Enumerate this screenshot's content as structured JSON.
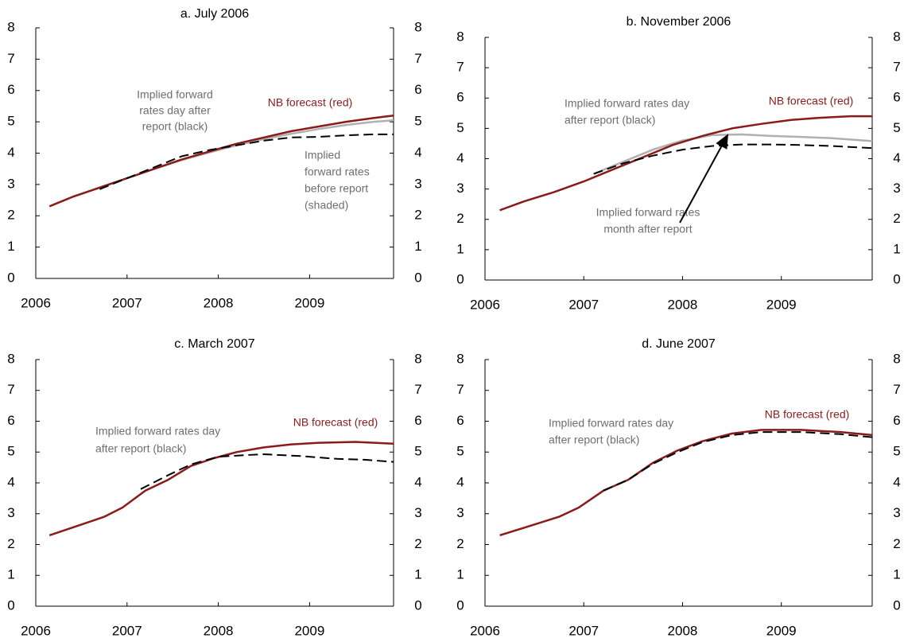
{
  "chart_data": [
    {
      "type": "line",
      "title": "a. July 2006",
      "xlim": [
        2006,
        2009.92
      ],
      "xticks": [
        2006,
        2007,
        2008,
        2009
      ],
      "ylim": [
        0,
        8
      ],
      "yticks": [
        0,
        1,
        2,
        3,
        4,
        5,
        6,
        7,
        8
      ],
      "series": [
        {
          "color": "#b0b0b0",
          "dashed": false,
          "x": [
            2006.15,
            2006.4,
            2006.7,
            2007.0,
            2007.3,
            2007.6,
            2007.9,
            2008.2,
            2008.5,
            2008.8,
            2009.1,
            2009.4,
            2009.7,
            2009.92
          ],
          "values": [
            2.3,
            2.6,
            2.9,
            3.2,
            3.5,
            3.78,
            4.02,
            4.25,
            4.45,
            4.62,
            4.77,
            4.9,
            5.0,
            5.05
          ]
        },
        {
          "color": "#8b1a1a",
          "dashed": false,
          "x": [
            2006.15,
            2006.4,
            2006.7,
            2007.0,
            2007.3,
            2007.6,
            2007.9,
            2008.2,
            2008.5,
            2008.8,
            2009.1,
            2009.4,
            2009.7,
            2009.92
          ],
          "values": [
            2.3,
            2.6,
            2.9,
            3.2,
            3.5,
            3.8,
            4.05,
            4.3,
            4.5,
            4.7,
            4.85,
            5.0,
            5.12,
            5.2
          ]
        },
        {
          "color": "#000000",
          "dashed": true,
          "x": [
            2006.7,
            2007.0,
            2007.3,
            2007.6,
            2007.9,
            2008.2,
            2008.5,
            2008.8,
            2009.1,
            2009.4,
            2009.7,
            2009.92
          ],
          "values": [
            2.85,
            3.2,
            3.55,
            3.9,
            4.1,
            4.25,
            4.4,
            4.5,
            4.52,
            4.57,
            4.6,
            4.6
          ]
        }
      ],
      "annotations": [
        [
          "Implied forward",
          "rates day after",
          "report (black)"
        ],
        [
          "NB forecast (red)"
        ],
        [
          "Implied",
          "forward rates",
          "before report",
          "(shaded)"
        ]
      ]
    },
    {
      "type": "line",
      "title": "b. November 2006",
      "xlim": [
        2006,
        2009.92
      ],
      "xticks": [
        2006,
        2007,
        2008,
        2009
      ],
      "ylim": [
        0,
        8
      ],
      "yticks": [
        0,
        1,
        2,
        3,
        4,
        5,
        6,
        7,
        8
      ],
      "series": [
        {
          "color": "#b0b0b0",
          "dashed": false,
          "x": [
            2007.1,
            2007.4,
            2007.7,
            2008.0,
            2008.3,
            2008.6,
            2008.9,
            2009.2,
            2009.5,
            2009.92
          ],
          "values": [
            3.5,
            3.9,
            4.3,
            4.6,
            4.78,
            4.8,
            4.75,
            4.72,
            4.68,
            4.58
          ]
        },
        {
          "color": "#8b1a1a",
          "dashed": false,
          "x": [
            2006.15,
            2006.4,
            2006.7,
            2007.0,
            2007.3,
            2007.6,
            2007.9,
            2008.2,
            2008.5,
            2008.8,
            2009.1,
            2009.4,
            2009.7,
            2009.92
          ],
          "values": [
            2.3,
            2.6,
            2.9,
            3.25,
            3.65,
            4.05,
            4.45,
            4.75,
            5.0,
            5.15,
            5.28,
            5.35,
            5.4,
            5.4
          ]
        },
        {
          "color": "#000000",
          "dashed": true,
          "x": [
            2007.1,
            2007.4,
            2007.7,
            2008.0,
            2008.3,
            2008.6,
            2008.9,
            2009.2,
            2009.5,
            2009.92
          ],
          "values": [
            3.5,
            3.85,
            4.1,
            4.3,
            4.42,
            4.47,
            4.47,
            4.45,
            4.42,
            4.35
          ]
        }
      ],
      "annotations": [
        [
          "Implied forward rates day",
          "after report (black)"
        ],
        [
          "NB forecast (red)"
        ],
        [
          "Implied forward rates",
          "month after report"
        ]
      ]
    },
    {
      "type": "line",
      "title": "c. March 2007",
      "xlim": [
        2006,
        2009.92
      ],
      "xticks": [
        2006,
        2007,
        2008,
        2009
      ],
      "ylim": [
        0,
        8
      ],
      "yticks": [
        0,
        1,
        2,
        3,
        4,
        5,
        6,
        7,
        8
      ],
      "series": [
        {
          "color": "#8b1a1a",
          "dashed": false,
          "x": [
            2006.15,
            2006.45,
            2006.75,
            2006.95,
            2007.2,
            2007.45,
            2007.7,
            2007.95,
            2008.2,
            2008.5,
            2008.8,
            2009.1,
            2009.5,
            2009.92
          ],
          "values": [
            2.3,
            2.6,
            2.9,
            3.2,
            3.75,
            4.1,
            4.55,
            4.8,
            5.0,
            5.15,
            5.25,
            5.3,
            5.33,
            5.27
          ]
        },
        {
          "color": "#000000",
          "dashed": true,
          "x": [
            2007.15,
            2007.45,
            2007.7,
            2008.0,
            2008.3,
            2008.5,
            2008.9,
            2009.3,
            2009.6,
            2009.92
          ],
          "values": [
            3.8,
            4.25,
            4.6,
            4.85,
            4.9,
            4.93,
            4.87,
            4.78,
            4.75,
            4.68
          ]
        }
      ],
      "annotations": [
        [
          "Implied forward rates day",
          "after report (black)"
        ],
        [
          "NB forecast (red)"
        ]
      ]
    },
    {
      "type": "line",
      "title": "d. June 2007",
      "xlim": [
        2006,
        2009.92
      ],
      "xticks": [
        2006,
        2007,
        2008,
        2009
      ],
      "ylim": [
        0,
        8
      ],
      "yticks": [
        0,
        1,
        2,
        3,
        4,
        5,
        6,
        7,
        8
      ],
      "series": [
        {
          "color": "#8b1a1a",
          "dashed": false,
          "x": [
            2006.15,
            2006.45,
            2006.75,
            2006.95,
            2007.2,
            2007.45,
            2007.7,
            2007.95,
            2008.2,
            2008.5,
            2008.8,
            2009.2,
            2009.6,
            2009.92
          ],
          "values": [
            2.3,
            2.6,
            2.9,
            3.2,
            3.75,
            4.1,
            4.65,
            5.05,
            5.35,
            5.6,
            5.72,
            5.72,
            5.65,
            5.55
          ]
        },
        {
          "color": "#000000",
          "dashed": true,
          "x": [
            2007.2,
            2007.45,
            2007.7,
            2007.95,
            2008.2,
            2008.5,
            2008.8,
            2009.2,
            2009.6,
            2009.92
          ],
          "values": [
            3.75,
            4.1,
            4.62,
            5.0,
            5.32,
            5.55,
            5.65,
            5.65,
            5.58,
            5.48
          ]
        }
      ],
      "annotations": [
        [
          "Implied forward rates day",
          "after report (black)"
        ],
        [
          "NB forecast (red)"
        ]
      ]
    }
  ]
}
